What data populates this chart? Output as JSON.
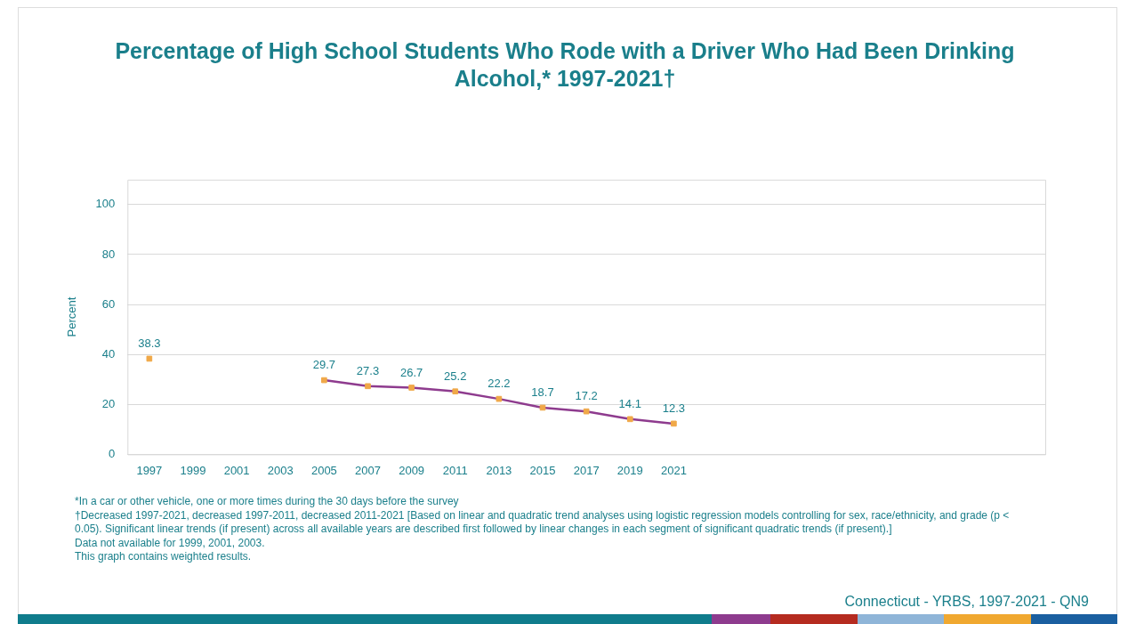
{
  "chart_data": {
    "type": "line",
    "title": "Percentage of High School Students Who Rode with a Driver Who Had Been Drinking Alcohol,* 1997-2021†",
    "ylabel": "Percent",
    "categories": [
      "1997",
      "1999",
      "2001",
      "2003",
      "2005",
      "2007",
      "2009",
      "2011",
      "2013",
      "2015",
      "2017",
      "2019",
      "2021",
      null,
      null,
      null,
      null,
      null,
      null,
      null,
      null
    ],
    "series": [
      {
        "color": "#8e3b8e",
        "colors": [
          "#f0a848",
          "#f0a848",
          "#f0a848",
          "#f0a848",
          "#f0a848",
          "#f0a848",
          "#f0a848",
          "#f0a848",
          "#f0a848",
          "#f0a848",
          "#f0a848",
          "#f0a848",
          "#f0a848",
          "#f0a848",
          "#f0a848",
          "#f0a848",
          "#f0a848",
          "#f0a848",
          "#f0a848",
          "#f0a848",
          "#f0a848"
        ],
        "values": [
          38.3,
          null,
          null,
          null,
          29.7,
          27.3,
          26.7,
          25.2,
          22.2,
          18.7,
          17.2,
          14.1,
          12.3,
          null,
          null,
          null,
          null,
          null,
          null,
          null,
          null
        ]
      }
    ],
    "ylim": [
      0,
      110
    ],
    "yticks": [
      0,
      20,
      40,
      60,
      80,
      100
    ],
    "grid": "y",
    "legend": false,
    "marker": "square",
    "line_style": "solid",
    "data_labels": true,
    "annotations": [
      "*In a car or other vehicle, one or more times during the 30 days before the survey",
      "†Decreased 1997-2021, decreased 1997-2011, decreased 2011-2021 [Based on linear and quadratic trend analyses using logistic regression models controlling for sex, race/ethnicity, and grade (p < 0.05). Significant linear trends (if present) across all available years are described first followed by linear changes in each segment of significant quadratic trends (if present).]",
      "Data not available for 1999, 2001, 2003.",
      "This graph contains weighted results.",
      "Connecticut - YRBS, 1997-2021 - QN9"
    ]
  }
}
